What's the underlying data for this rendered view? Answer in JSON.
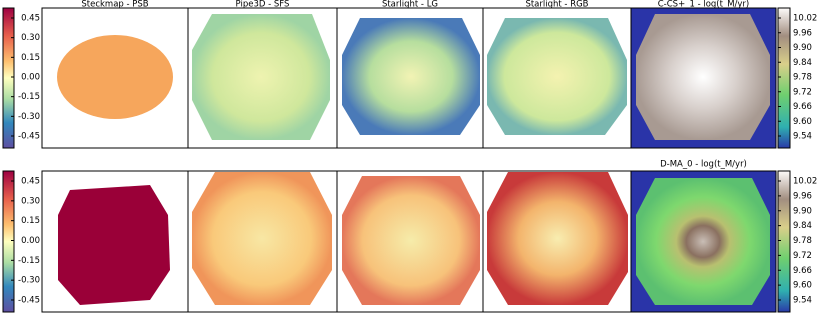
{
  "rows": [
    {
      "left_colorbar_ticks": [
        "0.45",
        "0.30",
        "0.15",
        "0.00",
        "-0.15",
        "-0.30",
        "-0.45"
      ],
      "panels": [
        "Steckmap - PSB",
        "Pipe3D - SFS",
        "Starlight - LG",
        "Starlight - RGB",
        "C-CS+_1 - log(t_M/yr)"
      ],
      "right_colorbar_ticks": [
        "10.02",
        "9.96",
        "9.90",
        "9.84",
        "9.78",
        "9.72",
        "9.66",
        "9.60",
        "9.54"
      ]
    },
    {
      "left_colorbar_ticks": [
        "0.45",
        "0.30",
        "0.15",
        "0.00",
        "-0.15",
        "-0.30",
        "-0.45"
      ],
      "panels": [
        "D-MA_0 - log(t_M/yr)"
      ],
      "right_colorbar_ticks": [
        "10.02",
        "9.96",
        "9.90",
        "9.84",
        "9.78",
        "9.72",
        "9.66",
        "9.60",
        "9.54"
      ]
    }
  ]
}
